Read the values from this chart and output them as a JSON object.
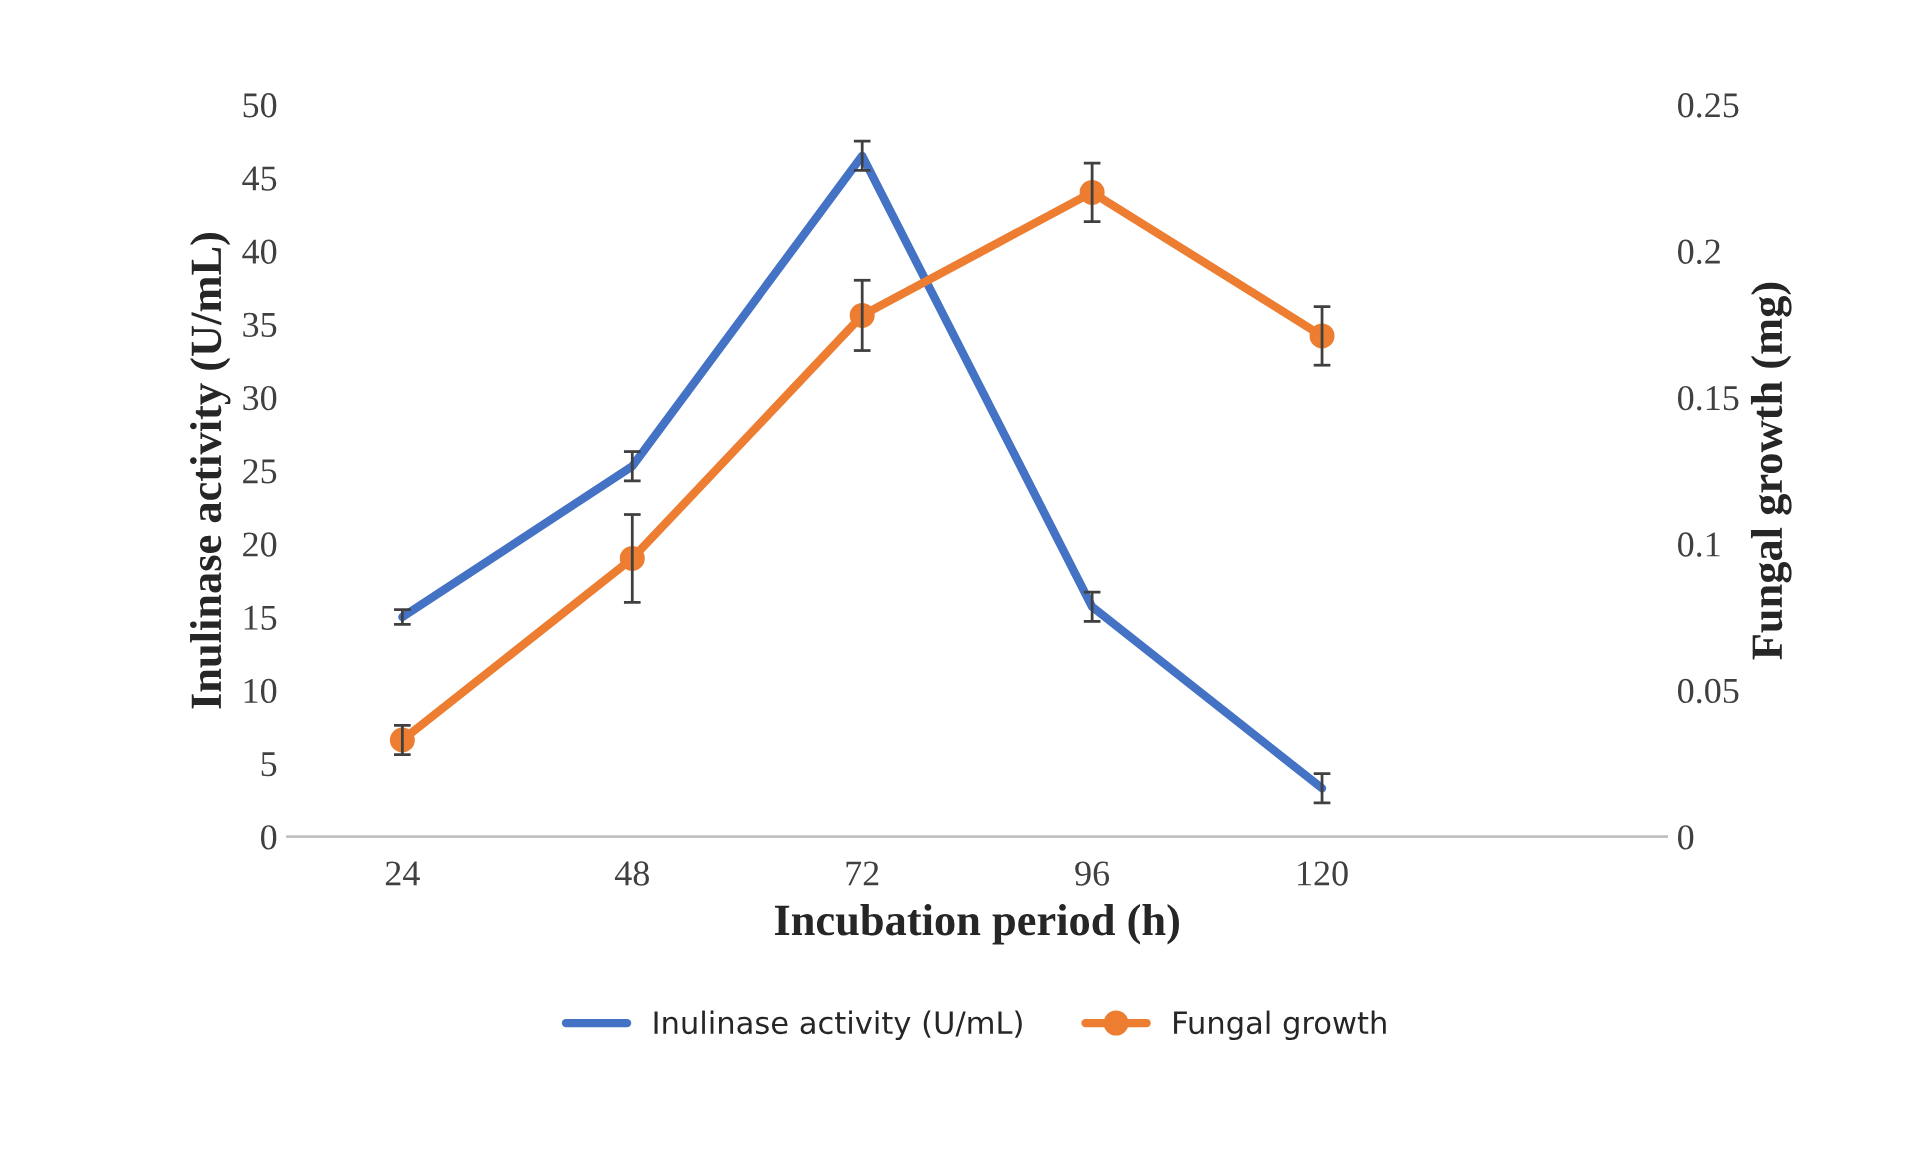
{
  "chart_data": {
    "type": "line",
    "xlabel": "Incubation period (h)",
    "ylabel": "Inulinase activity (U/mL)",
    "y2label": "Fungal growth (mg)",
    "categories": [
      "24",
      "48",
      "72",
      "96",
      "120",
      null
    ],
    "ylim": [
      0,
      50
    ],
    "yticks": [
      0,
      5,
      10,
      15,
      20,
      25,
      30,
      35,
      40,
      45,
      50
    ],
    "y2lim": [
      0,
      0.25
    ],
    "y2ticks": [
      {
        "value": 0,
        "label": "0"
      },
      0.05,
      0.1,
      0.15,
      0.2,
      0.25
    ],
    "series": [
      {
        "name": "Inulinase activity (U/mL)",
        "color": "#4472c4",
        "values": [
          15.0,
          25.3,
          46.5,
          15.7,
          3.3,
          null
        ],
        "errors": [
          0.5,
          1,
          1,
          1,
          1,
          null
        ],
        "marker": "none"
      },
      {
        "name": "Fungal growth",
        "color": "#ed7d31",
        "axis": "y2",
        "values": [
          0.033,
          0.095,
          0.178,
          0.22,
          0.171,
          null
        ],
        "errors": [
          0.005,
          0.015,
          0.012,
          0.01,
          0.01,
          null
        ],
        "marker": "circle"
      }
    ],
    "legend": "bottom",
    "grid": false
  }
}
